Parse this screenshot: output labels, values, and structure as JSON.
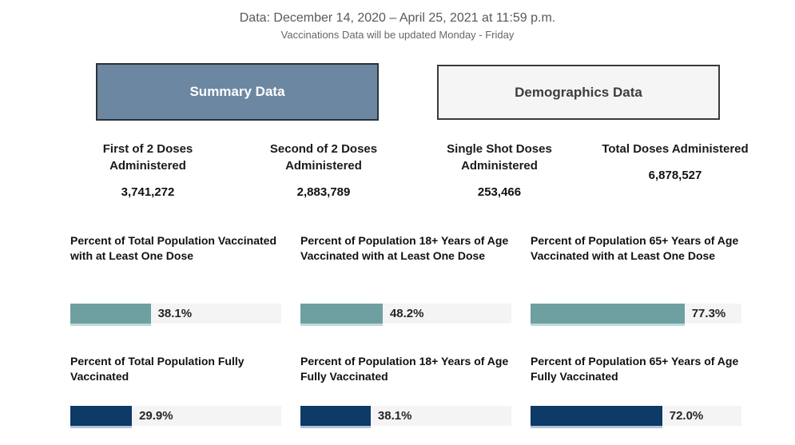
{
  "colors": {
    "teal_bar": "#6FA0A1",
    "teal_bar_underline": "#C3D8D8",
    "navy_bar": "#0D3A66",
    "navy_bar_underline": "#B3C4D8",
    "bar_track": "#F4F4F4",
    "summary_tab_bg": "#6C87A1",
    "summary_tab_text": "#FFFFFF",
    "demographics_tab_bg": "#F5F5F5",
    "demographics_tab_text": "#3D3D3D",
    "tab_border": "#333333",
    "header_text": "#595959"
  },
  "header": {
    "line1": "Data: December 14, 2020 – April 25, 2021 at 11:59 p.m.",
    "line2": "Vaccinations Data will be updated Monday - Friday"
  },
  "tabs": [
    {
      "label": "Summary Data",
      "active": true
    },
    {
      "label": "Demographics Data",
      "active": false
    }
  ],
  "stats": [
    {
      "label": "First of 2 Doses Administered",
      "value": "3,741,272"
    },
    {
      "label": "Second of 2 Doses Administered",
      "value": "2,883,789"
    },
    {
      "label": "Single Shot Doses Administered",
      "value": "253,466"
    },
    {
      "label": "Total Doses Administered",
      "value": "6,878,527"
    }
  ],
  "bars": {
    "row1": [
      {
        "label": "Percent of Total Population Vaccinated with at Least One Dose",
        "value": "38.1%",
        "fill": "38.1%"
      },
      {
        "label": "Percent of Population 18+ Years of Age Vaccinated with at Least One Dose",
        "value": "48.2%",
        "fill": "39%"
      },
      {
        "label": "Percent of Population 65+ Years of Age Vaccinated with at Least One Dose",
        "value": "77.3%",
        "fill": "73%"
      }
    ],
    "row2": [
      {
        "label": "Percent of Total Population Fully Vaccinated",
        "value": "29.9%",
        "fill": "29.2%"
      },
      {
        "label": "Percent of Population 18+ Years of Age Fully Vaccinated",
        "value": "38.1%",
        "fill": "33.3%"
      },
      {
        "label": "Percent of Population 65+ Years of Age Fully Vaccinated",
        "value": "72.0%",
        "fill": "62.4%"
      }
    ]
  },
  "chart_data": [
    {
      "type": "bar",
      "series_name": "Vaccinated with at Least One Dose",
      "categories": [
        "Total Population",
        "Population 18+ Years of Age",
        "Population 65+ Years of Age"
      ],
      "values": [
        38.1,
        48.2,
        77.3
      ],
      "unit": "percent",
      "bar_color": "#6FA0A1",
      "xlim": [
        0,
        100
      ],
      "orientation": "horizontal",
      "data_labels": [
        "38.1%",
        "48.2%",
        "77.3%"
      ]
    },
    {
      "type": "bar",
      "series_name": "Fully Vaccinated",
      "categories": [
        "Total Population",
        "Population 18+ Years of Age",
        "Population 65+ Years of Age"
      ],
      "values": [
        29.9,
        38.1,
        72.0
      ],
      "unit": "percent",
      "bar_color": "#0D3A66",
      "xlim": [
        0,
        100
      ],
      "orientation": "horizontal",
      "data_labels": [
        "29.9%",
        "38.1%",
        "72.0%"
      ]
    }
  ]
}
